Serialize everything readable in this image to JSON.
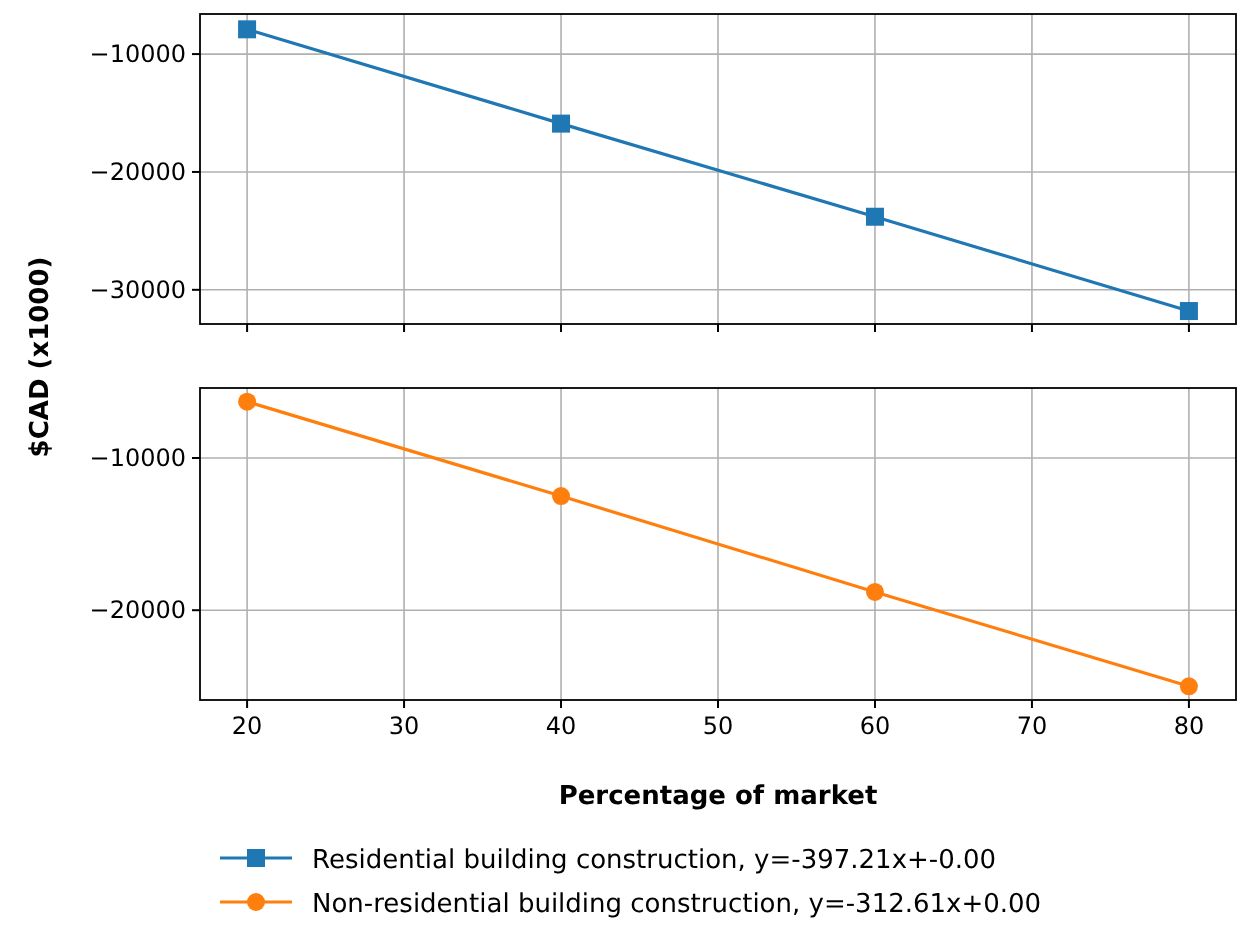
{
  "chart_data": [
    {
      "type": "line",
      "ylabel": "$CAD (x1000)",
      "x": [
        20,
        40,
        60,
        80
      ],
      "series": [
        {
          "name": "Residential building construction, y=-397.21x+-0.00",
          "color": "#1f77b4",
          "values": [
            -7900,
            -15900,
            -23800,
            -31800
          ],
          "marker": "square"
        }
      ],
      "xlim": [
        17,
        83
      ],
      "xticks": [
        20,
        30,
        40,
        50,
        60,
        70,
        80
      ],
      "ylim": [
        -32900,
        -6600
      ],
      "yticks": [
        -10000,
        -20000,
        -30000
      ],
      "grid": true,
      "tick_labels": "y",
      "legend": "bottom"
    },
    {
      "type": "line",
      "xlabel": "Percentage of market",
      "x": [
        20,
        40,
        60,
        80
      ],
      "series": [
        {
          "name": "Non-residential building construction, y=-312.61x+0.00",
          "color": "#ff7f0e",
          "values": [
            -6300,
            -12500,
            -18800,
            -25000
          ],
          "marker": "circle"
        }
      ],
      "xlim": [
        17,
        83
      ],
      "xticks": [
        20,
        30,
        40,
        50,
        60,
        70,
        80
      ],
      "ylim": [
        -25900,
        -5400
      ],
      "yticks": [
        -10000,
        -20000
      ],
      "grid": true,
      "legend": "bottom"
    }
  ]
}
